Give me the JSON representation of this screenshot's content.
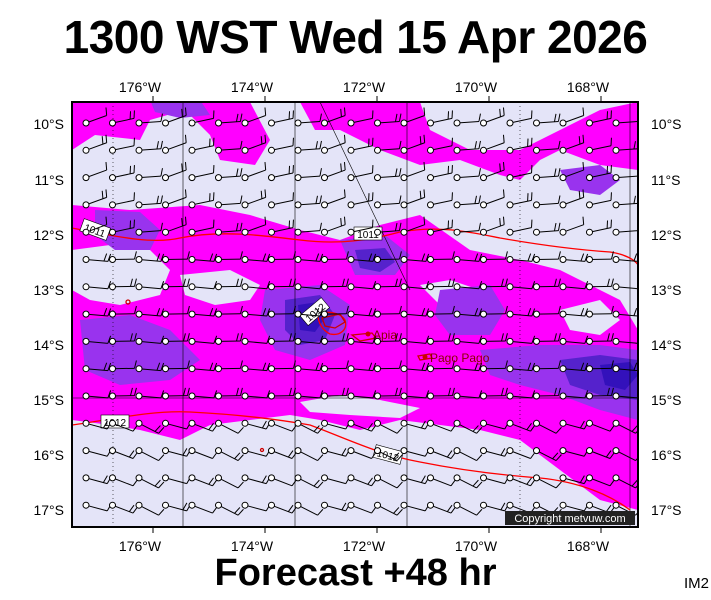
{
  "title": "1300 WST Wed 15 Apr 2026",
  "footer": "Forecast +48 hr",
  "corner_label": "IM2",
  "copyright": "Copyright metvuw.com",
  "longitude_labels": [
    "176°W",
    "174°W",
    "172°W",
    "170°W",
    "168°W"
  ],
  "latitude_labels": [
    "10°S",
    "11°S",
    "12°S",
    "13°S",
    "14°S",
    "15°S",
    "16°S",
    "17°S"
  ],
  "places": [
    {
      "name": "Apia"
    },
    {
      "name": "Pago Pago"
    }
  ],
  "isobars": [
    {
      "value": "1011"
    },
    {
      "value": "1011"
    },
    {
      "value": "1012"
    },
    {
      "value": "1012"
    },
    {
      "value": "1012"
    }
  ],
  "colors": {
    "ocean": "#e4e4f8",
    "rain_light": "#ff00ff",
    "rain_medium": "#9933ee",
    "rain_heavy": "#5522cc",
    "rain_very_heavy": "#3311bb",
    "isobar": "#ff0000",
    "wind": "#000000",
    "land": "#cc0000"
  }
}
